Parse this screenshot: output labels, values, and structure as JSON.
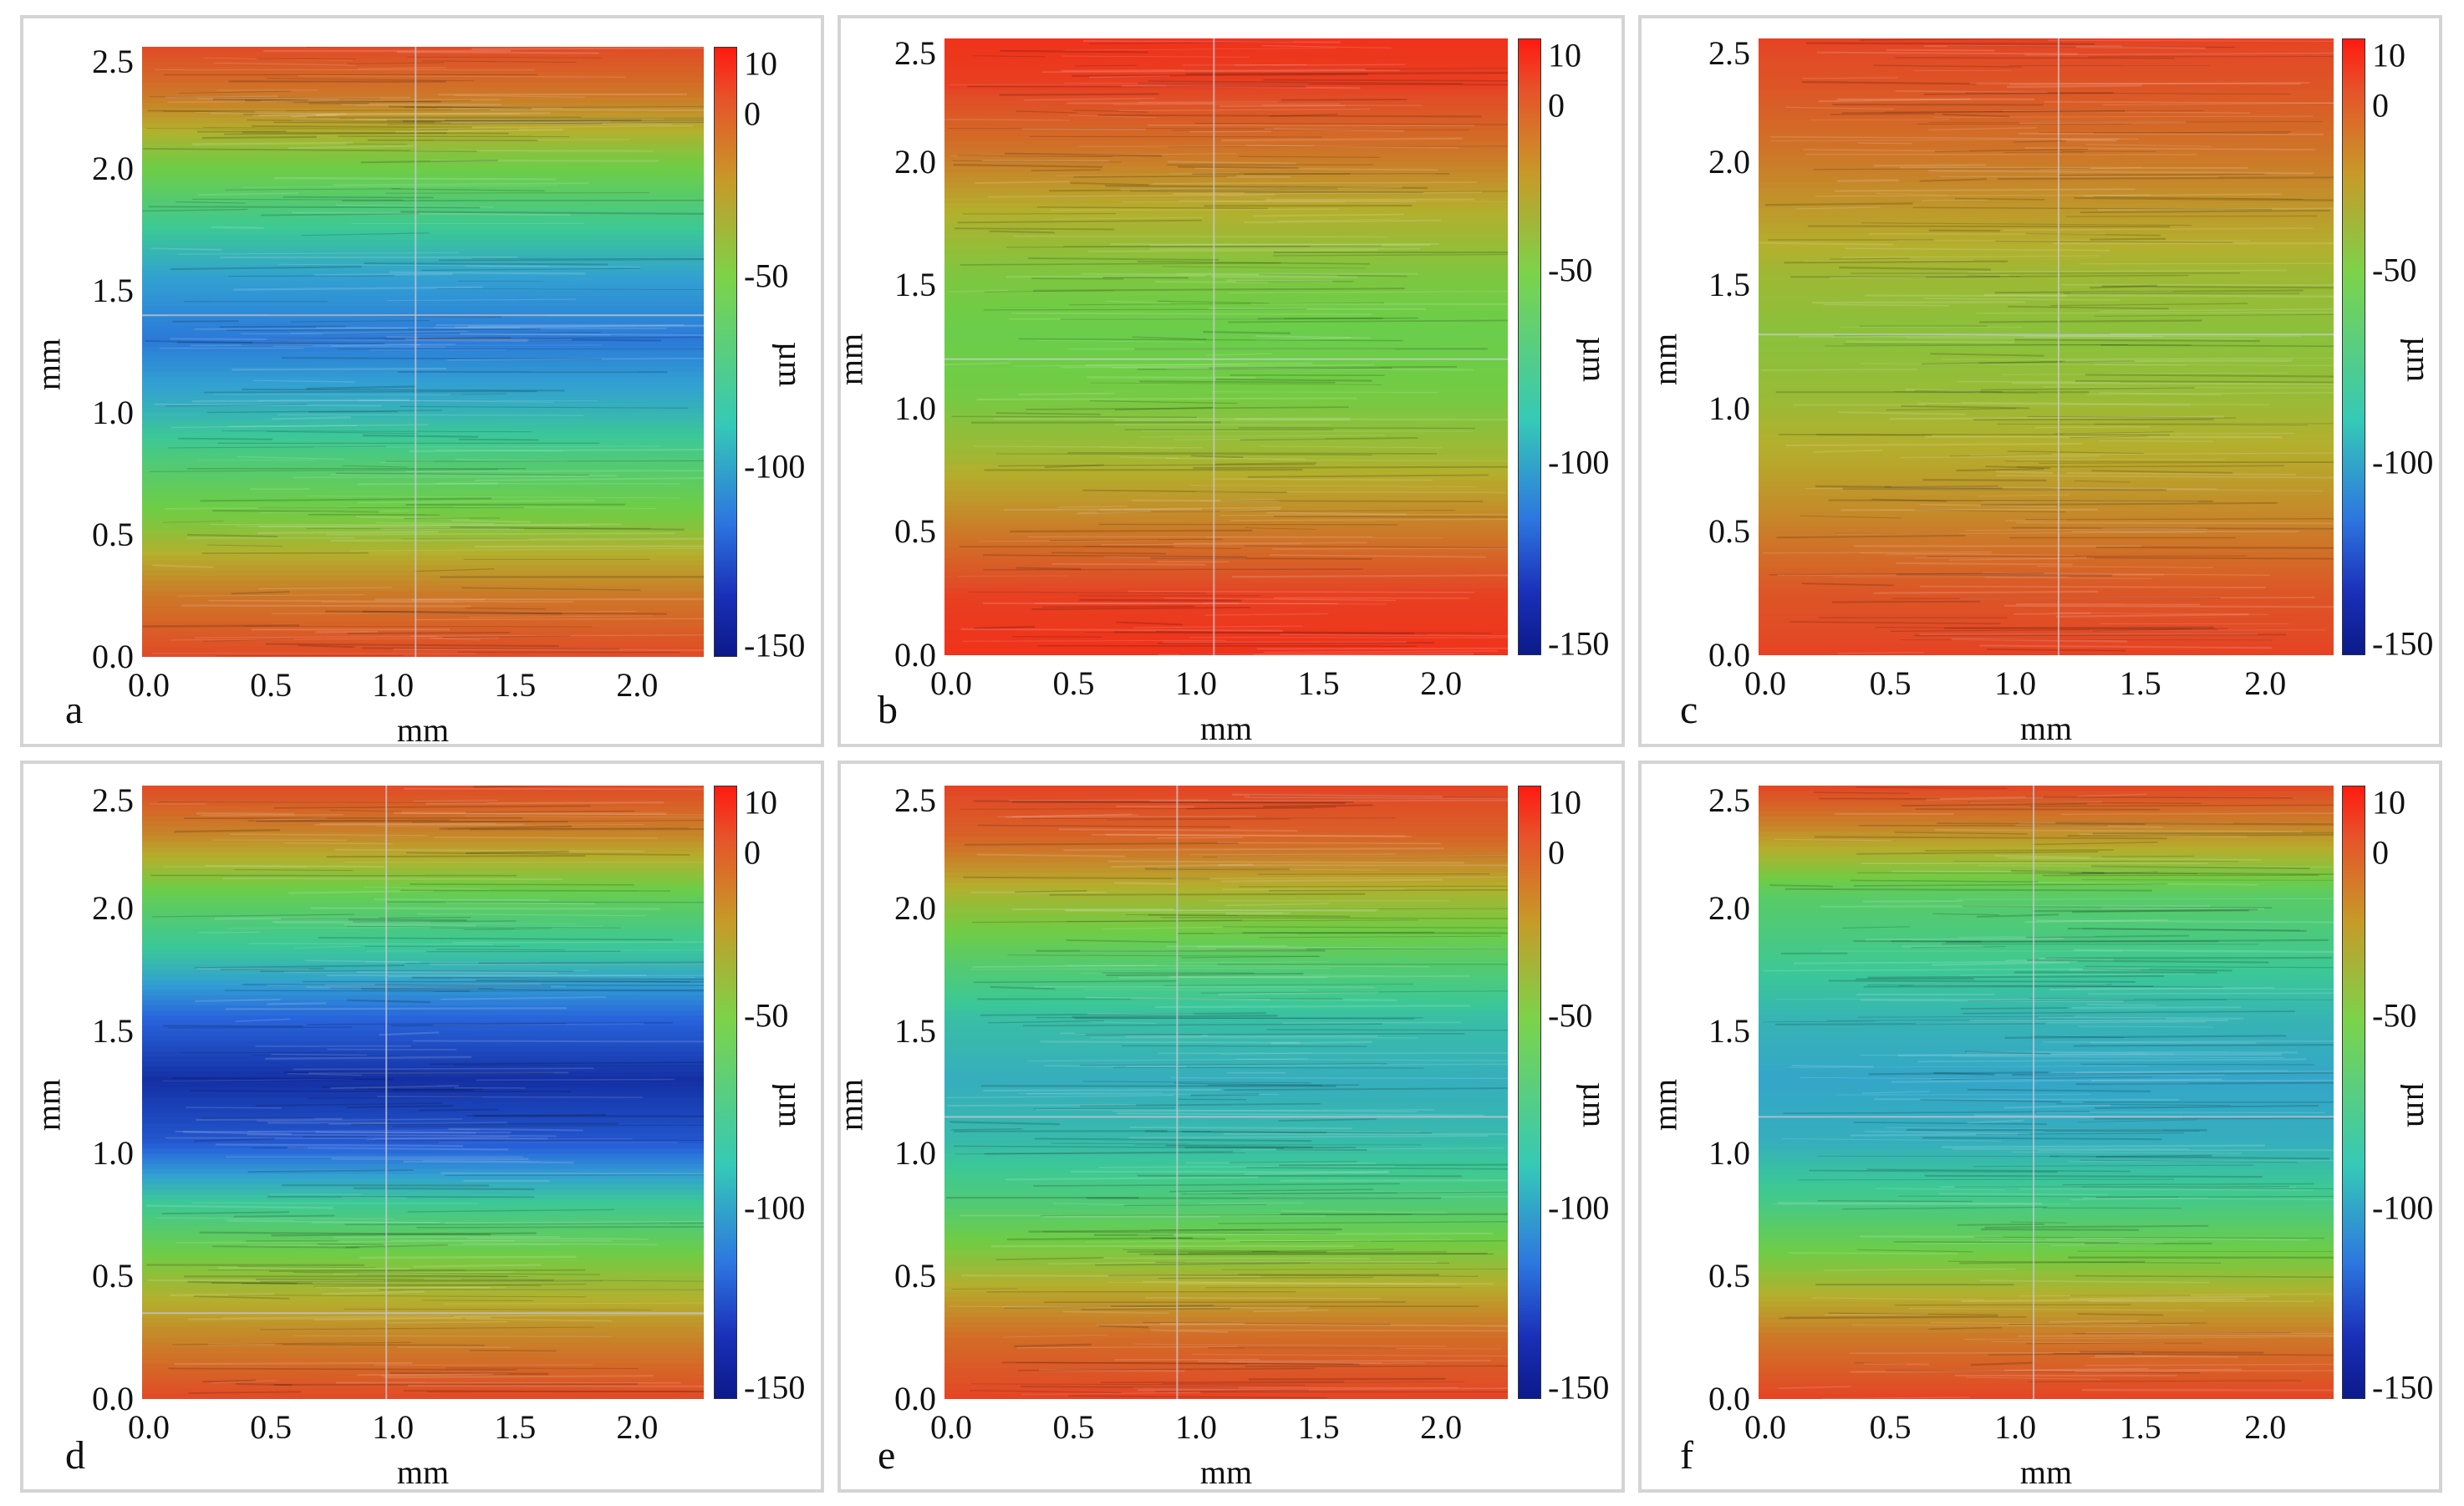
{
  "chart_data": [
    {
      "panel": "a",
      "type": "heatmap",
      "xlabel": "mm",
      "ylabel": "mm",
      "colorbar_label": "µm",
      "x_ticks": [
        "0.0",
        "0.5",
        "1.0",
        "1.5",
        "2.0"
      ],
      "y_ticks": [
        "0.0",
        "0.5",
        "1.0",
        "1.5",
        "2.0",
        "2.5"
      ],
      "colorbar_ticks": [
        "10",
        "0",
        "-50",
        "-100",
        "-150"
      ],
      "xlim": [
        0,
        2.3
      ],
      "ylim": [
        0,
        2.5
      ],
      "zlim": [
        -150,
        10
      ],
      "profile_y_mm": [
        0.0,
        0.25,
        0.55,
        0.8,
        1.05,
        1.3,
        1.55,
        1.8,
        2.05,
        2.3,
        2.5
      ],
      "profile_depth_um": [
        0,
        -20,
        -55,
        -75,
        -100,
        -118,
        -105,
        -80,
        -55,
        -20,
        0
      ],
      "crosshair_mm": {
        "x": 1.12,
        "y": 1.4
      }
    },
    {
      "panel": "b",
      "type": "heatmap",
      "xlabel": "mm",
      "ylabel": "mm",
      "colorbar_label": "µm",
      "x_ticks": [
        "0.0",
        "0.5",
        "1.0",
        "1.5",
        "2.0"
      ],
      "y_ticks": [
        "0.0",
        "0.5",
        "1.0",
        "1.5",
        "2.0",
        "2.5"
      ],
      "colorbar_ticks": [
        "10",
        "0",
        "-50",
        "-100",
        "-150"
      ],
      "xlim": [
        0,
        2.3
      ],
      "ylim": [
        0,
        2.5
      ],
      "zlim": [
        -150,
        10
      ],
      "profile_y_mm": [
        0.0,
        0.25,
        0.55,
        0.8,
        1.05,
        1.3,
        1.55,
        1.8,
        2.05,
        2.3,
        2.5
      ],
      "profile_depth_um": [
        5,
        2,
        -25,
        -45,
        -58,
        -62,
        -55,
        -40,
        -18,
        2,
        5
      ],
      "crosshair_mm": {
        "x": 1.1,
        "y": 1.2
      }
    },
    {
      "panel": "c",
      "type": "heatmap",
      "xlabel": "mm",
      "ylabel": "mm",
      "colorbar_label": "µm",
      "x_ticks": [
        "0.0",
        "0.5",
        "1.0",
        "1.5",
        "2.0"
      ],
      "y_ticks": [
        "0.0",
        "0.5",
        "1.0",
        "1.5",
        "2.0",
        "2.5"
      ],
      "colorbar_ticks": [
        "10",
        "0",
        "-50",
        "-100",
        "-150"
      ],
      "xlim": [
        0,
        2.3
      ],
      "ylim": [
        0,
        2.5
      ],
      "zlim": [
        -150,
        10
      ],
      "profile_y_mm": [
        0.0,
        0.25,
        0.55,
        0.8,
        1.05,
        1.3,
        1.55,
        1.8,
        2.05,
        2.3,
        2.5
      ],
      "profile_depth_um": [
        2,
        -5,
        -25,
        -38,
        -48,
        -52,
        -46,
        -32,
        -18,
        -5,
        2
      ],
      "crosshair_mm": {
        "x": 1.2,
        "y": 1.3
      }
    },
    {
      "panel": "d",
      "type": "heatmap",
      "xlabel": "mm",
      "ylabel": "mm",
      "colorbar_label": "µm",
      "x_ticks": [
        "0.0",
        "0.5",
        "1.0",
        "1.5",
        "2.0"
      ],
      "y_ticks": [
        "0.0",
        "0.5",
        "1.0",
        "1.5",
        "2.0",
        "2.5"
      ],
      "colorbar_ticks": [
        "10",
        "0",
        "-50",
        "-100",
        "-150"
      ],
      "xlim": [
        0,
        2.3
      ],
      "ylim": [
        0,
        2.5
      ],
      "zlim": [
        -150,
        10
      ],
      "profile_y_mm": [
        0.0,
        0.25,
        0.55,
        0.8,
        1.05,
        1.3,
        1.55,
        1.8,
        2.05,
        2.3,
        2.5
      ],
      "profile_depth_um": [
        0,
        -25,
        -55,
        -85,
        -130,
        -145,
        -125,
        -90,
        -65,
        -25,
        0
      ],
      "crosshair_mm": {
        "x": 1.0,
        "y": 0.35
      }
    },
    {
      "panel": "e",
      "type": "heatmap",
      "xlabel": "mm",
      "ylabel": "mm",
      "colorbar_label": "µm",
      "x_ticks": [
        "0.0",
        "0.5",
        "1.0",
        "1.5",
        "2.0"
      ],
      "y_ticks": [
        "0.0",
        "0.5",
        "1.0",
        "1.5",
        "2.0",
        "2.5"
      ],
      "colorbar_ticks": [
        "10",
        "0",
        "-50",
        "-100",
        "-150"
      ],
      "xlim": [
        0,
        2.3
      ],
      "ylim": [
        0,
        2.5
      ],
      "zlim": [
        -150,
        10
      ],
      "profile_y_mm": [
        0.0,
        0.25,
        0.55,
        0.8,
        1.05,
        1.3,
        1.55,
        1.8,
        2.05,
        2.3,
        2.5
      ],
      "profile_depth_um": [
        2,
        -15,
        -50,
        -75,
        -92,
        -98,
        -90,
        -70,
        -45,
        -10,
        2
      ],
      "crosshair_mm": {
        "x": 0.95,
        "y": 1.15
      }
    },
    {
      "panel": "f",
      "type": "heatmap",
      "xlabel": "mm",
      "ylabel": "mm",
      "colorbar_label": "µm",
      "x_ticks": [
        "0.0",
        "0.5",
        "1.0",
        "1.5",
        "2.0"
      ],
      "y_ticks": [
        "0.0",
        "0.5",
        "1.0",
        "1.5",
        "2.0",
        "2.5"
      ],
      "colorbar_ticks": [
        "10",
        "0",
        "-50",
        "-100",
        "-150"
      ],
      "xlim": [
        0,
        2.3
      ],
      "ylim": [
        0,
        2.5
      ],
      "zlim": [
        -150,
        10
      ],
      "profile_y_mm": [
        0.0,
        0.25,
        0.55,
        0.8,
        1.05,
        1.3,
        1.55,
        1.8,
        2.05,
        2.3,
        2.5
      ],
      "profile_depth_um": [
        2,
        -20,
        -55,
        -80,
        -98,
        -102,
        -95,
        -82,
        -70,
        -30,
        2
      ],
      "crosshair_mm": {
        "x": 1.1,
        "y": 1.15
      }
    }
  ]
}
